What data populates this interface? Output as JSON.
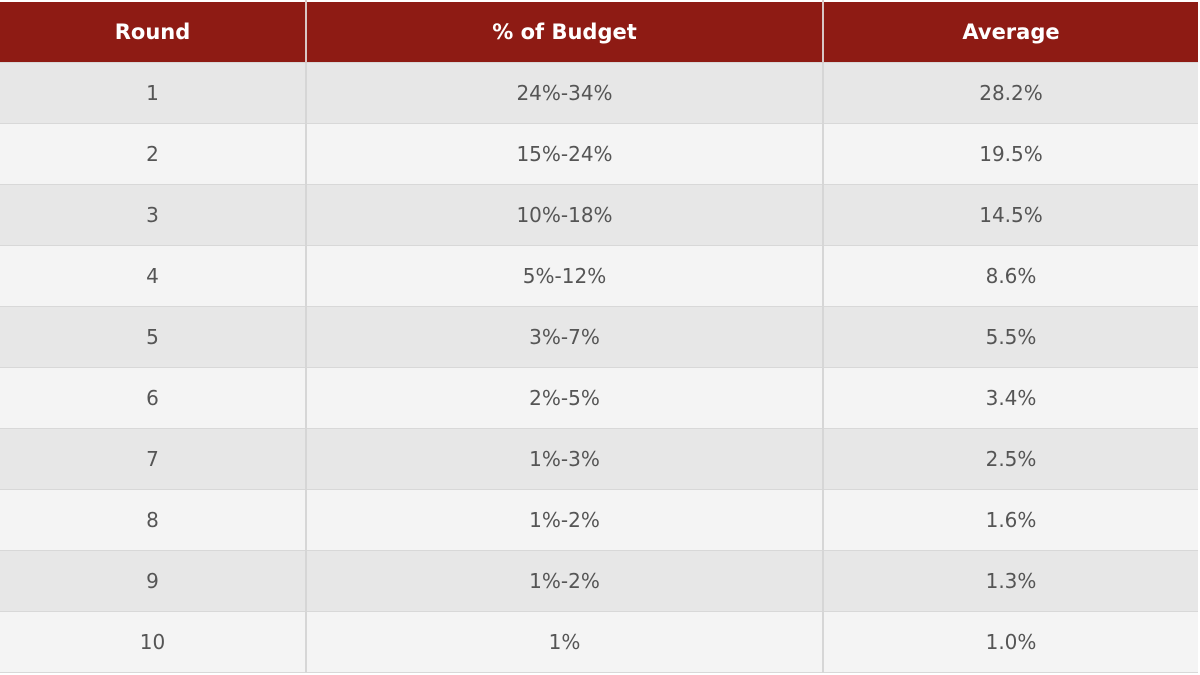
{
  "colors": {
    "header_bg": "#8e1b14",
    "header_text": "#ffffff",
    "row_odd": "#e7e7e7",
    "row_even": "#f4f4f4",
    "cell_text": "#555555"
  },
  "table": {
    "headers": [
      "Round",
      "% of Budget",
      "Average"
    ],
    "rows": [
      [
        "1",
        "24%-34%",
        "28.2%"
      ],
      [
        "2",
        "15%-24%",
        "19.5%"
      ],
      [
        "3",
        "10%-18%",
        "14.5%"
      ],
      [
        "4",
        "5%-12%",
        "8.6%"
      ],
      [
        "5",
        "3%-7%",
        "5.5%"
      ],
      [
        "6",
        "2%-5%",
        "3.4%"
      ],
      [
        "7",
        "1%-3%",
        "2.5%"
      ],
      [
        "8",
        "1%-2%",
        "1.6%"
      ],
      [
        "9",
        "1%-2%",
        "1.3%"
      ],
      [
        "10",
        "1%",
        "1.0%"
      ]
    ]
  }
}
